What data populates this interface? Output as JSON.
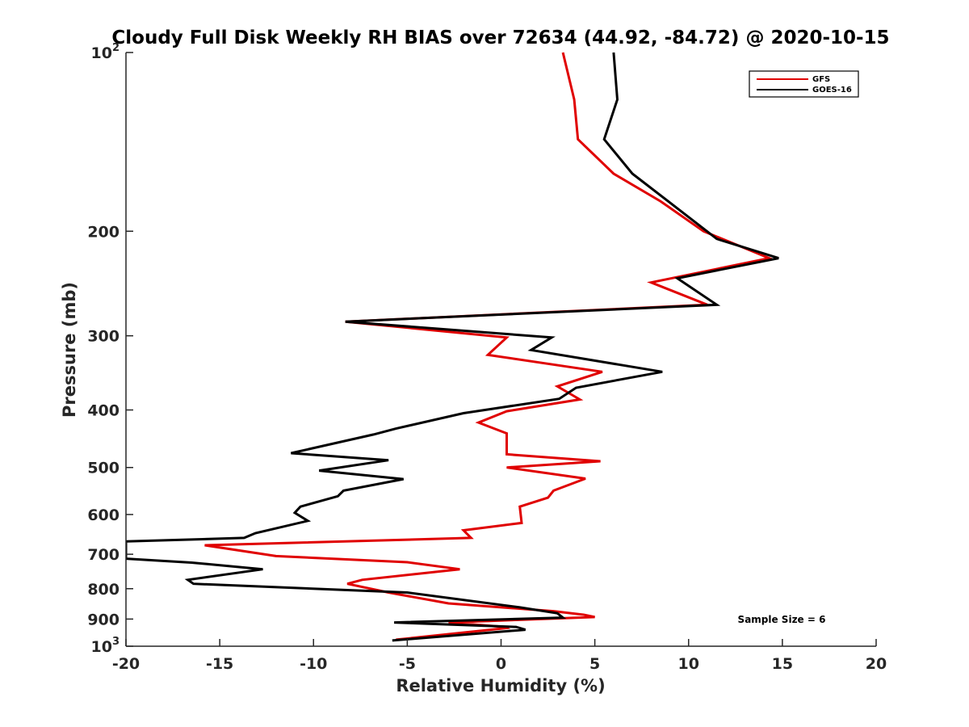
{
  "chart_data": {
    "type": "line",
    "title": "Cloudy Full Disk Weekly RH BIAS over 72634 (44.92, -84.72) @ 2020-10-15",
    "xlabel": "Relative Humidity (%)",
    "ylabel": "Pressure (mb)",
    "xlim": [
      -20,
      20
    ],
    "ylim": [
      100,
      1000
    ],
    "yscale": "log",
    "y_reversed": true,
    "grid": false,
    "x_ticks": [
      "-20",
      "-15",
      "-10",
      "-5",
      "0",
      "5",
      "10",
      "15",
      "20"
    ],
    "y_ticks": [
      {
        "value": 100,
        "base": "10",
        "exp": "2"
      },
      {
        "value": 200,
        "base": "200",
        "exp": ""
      },
      {
        "value": 300,
        "base": "300",
        "exp": ""
      },
      {
        "value": 400,
        "base": "400",
        "exp": ""
      },
      {
        "value": 500,
        "base": "500",
        "exp": ""
      },
      {
        "value": 600,
        "base": "600",
        "exp": ""
      },
      {
        "value": 700,
        "base": "700",
        "exp": ""
      },
      {
        "value": 800,
        "base": "800",
        "exp": ""
      },
      {
        "value": 900,
        "base": "900",
        "exp": ""
      },
      {
        "value": 1000,
        "base": "10",
        "exp": "3"
      }
    ],
    "legend_position": "top-right",
    "annotation": "Sample Size = 6",
    "series": [
      {
        "name": "GFS",
        "color": "#e00000",
        "points": [
          [
            3.3,
            100
          ],
          [
            3.9,
            120
          ],
          [
            4.1,
            140
          ],
          [
            6.0,
            160
          ],
          [
            8.5,
            178
          ],
          [
            10.8,
            200
          ],
          [
            14.3,
            222
          ],
          [
            8.0,
            244
          ],
          [
            11.0,
            266
          ],
          [
            -8.3,
            284
          ],
          [
            0.3,
            302
          ],
          [
            -0.7,
            323
          ],
          [
            5.4,
            345
          ],
          [
            3.0,
            365
          ],
          [
            4.2,
            384
          ],
          [
            0.3,
            402
          ],
          [
            -1.2,
            420
          ],
          [
            0.3,
            438
          ],
          [
            0.3,
            475
          ],
          [
            5.3,
            488
          ],
          [
            0.3,
            500
          ],
          [
            4.5,
            522
          ],
          [
            2.8,
            547
          ],
          [
            2.5,
            562
          ],
          [
            1.0,
            582
          ],
          [
            1.1,
            620
          ],
          [
            -2.0,
            638
          ],
          [
            -1.6,
            657
          ],
          [
            -15.8,
            676
          ],
          [
            -12.0,
            705
          ],
          [
            -5.0,
            722
          ],
          [
            -2.2,
            742
          ],
          [
            -7.4,
            773
          ],
          [
            -8.2,
            785
          ],
          [
            -6.0,
            812
          ],
          [
            -2.8,
            847
          ],
          [
            2.8,
            873
          ],
          [
            4.4,
            885
          ],
          [
            5.0,
            893
          ],
          [
            -2.8,
            912
          ],
          [
            0.2,
            928
          ],
          [
            0.3,
            932
          ],
          [
            -5.6,
            975
          ]
        ]
      },
      {
        "name": "GOES-16",
        "color": "#000000",
        "points": [
          [
            6.0,
            100
          ],
          [
            6.2,
            120
          ],
          [
            5.5,
            140
          ],
          [
            7.0,
            160
          ],
          [
            9.4,
            183
          ],
          [
            11.5,
            206
          ],
          [
            14.8,
            222
          ],
          [
            9.4,
            240
          ],
          [
            11.5,
            266
          ],
          [
            -8.3,
            284
          ],
          [
            2.7,
            302
          ],
          [
            1.6,
            317
          ],
          [
            8.6,
            345
          ],
          [
            4.0,
            367
          ],
          [
            3.1,
            383
          ],
          [
            -2.0,
            405
          ],
          [
            -5.6,
            430
          ],
          [
            -6.8,
            440
          ],
          [
            -11.2,
            473
          ],
          [
            -6.0,
            486
          ],
          [
            -9.7,
            506
          ],
          [
            -5.2,
            523
          ],
          [
            -8.4,
            547
          ],
          [
            -8.7,
            559
          ],
          [
            -10.7,
            582
          ],
          [
            -11.0,
            596
          ],
          [
            -10.3,
            615
          ],
          [
            -13.1,
            645
          ],
          [
            -13.7,
            657
          ],
          [
            -20.0,
            666
          ],
          [
            -20.0,
            712
          ],
          [
            -16.5,
            723
          ],
          [
            -12.7,
            742
          ],
          [
            -16.7,
            773
          ],
          [
            -16.4,
            785
          ],
          [
            -5.0,
            812
          ],
          [
            1.0,
            860
          ],
          [
            3.0,
            880
          ],
          [
            3.3,
            895
          ],
          [
            -5.7,
            912
          ],
          [
            0.8,
            928
          ],
          [
            1.3,
            938
          ],
          [
            -5.8,
            978
          ]
        ]
      }
    ]
  }
}
